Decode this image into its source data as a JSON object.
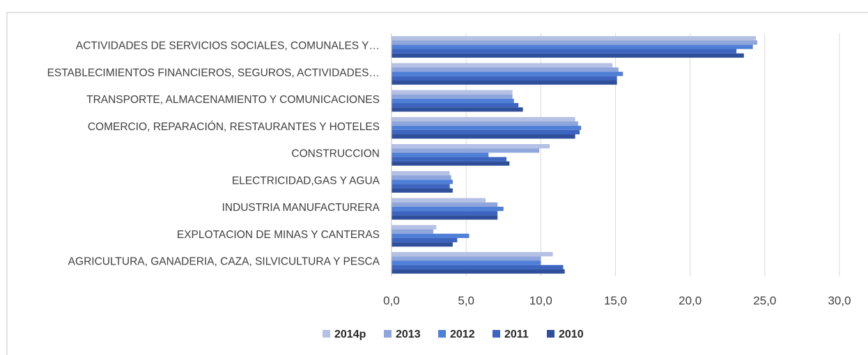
{
  "chart_data": {
    "type": "bar",
    "orientation": "horizontal",
    "categories": [
      "ACTIVIDADES DE SERVICIOS SOCIALES, COMUNALES Y…",
      "ESTABLECIMIENTOS FINANCIEROS, SEGUROS, ACTIVIDADES…",
      "TRANSPORTE, ALMACENAMIENTO Y COMUNICACIONES",
      "COMERCIO, REPARACIÓN, RESTAURANTES Y HOTELES",
      "CONSTRUCCION",
      "ELECTRICIDAD,GAS Y AGUA",
      "INDUSTRIA MANUFACTURERA",
      "EXPLOTACION DE MINAS Y CANTERAS",
      "AGRICULTURA, GANADERIA, CAZA, SILVICULTURA Y PESCA"
    ],
    "series": [
      {
        "name": "2014p",
        "color": "#b4c0e4",
        "values": [
          24.4,
          14.8,
          8.1,
          12.3,
          10.6,
          3.9,
          6.3,
          3.0,
          10.8
        ]
      },
      {
        "name": "2013",
        "color": "#8fa6dc",
        "values": [
          24.5,
          15.2,
          8.1,
          12.5,
          9.9,
          4.0,
          7.1,
          2.8,
          10.0
        ]
      },
      {
        "name": "2012",
        "color": "#4f7fd6",
        "values": [
          24.2,
          15.5,
          8.2,
          12.7,
          6.5,
          4.1,
          7.5,
          5.2,
          10.0
        ]
      },
      {
        "name": "2011",
        "color": "#3d65c0",
        "values": [
          23.1,
          15.1,
          8.5,
          12.6,
          7.7,
          3.9,
          7.1,
          4.4,
          11.5
        ]
      },
      {
        "name": "2010",
        "color": "#2f4f9a",
        "values": [
          23.6,
          15.1,
          8.8,
          12.3,
          7.9,
          4.1,
          7.1,
          4.1,
          11.6
        ]
      }
    ],
    "xlim": [
      0,
      30
    ],
    "xticks": [
      {
        "value": 0,
        "label": "0,0"
      },
      {
        "value": 5,
        "label": "5,0"
      },
      {
        "value": 10,
        "label": "10,0"
      },
      {
        "value": 15,
        "label": "15,0"
      },
      {
        "value": 20,
        "label": "20,0"
      },
      {
        "value": 25,
        "label": "25,0"
      },
      {
        "value": 30,
        "label": "30,0"
      }
    ],
    "grid": true,
    "legend": "bottom"
  }
}
